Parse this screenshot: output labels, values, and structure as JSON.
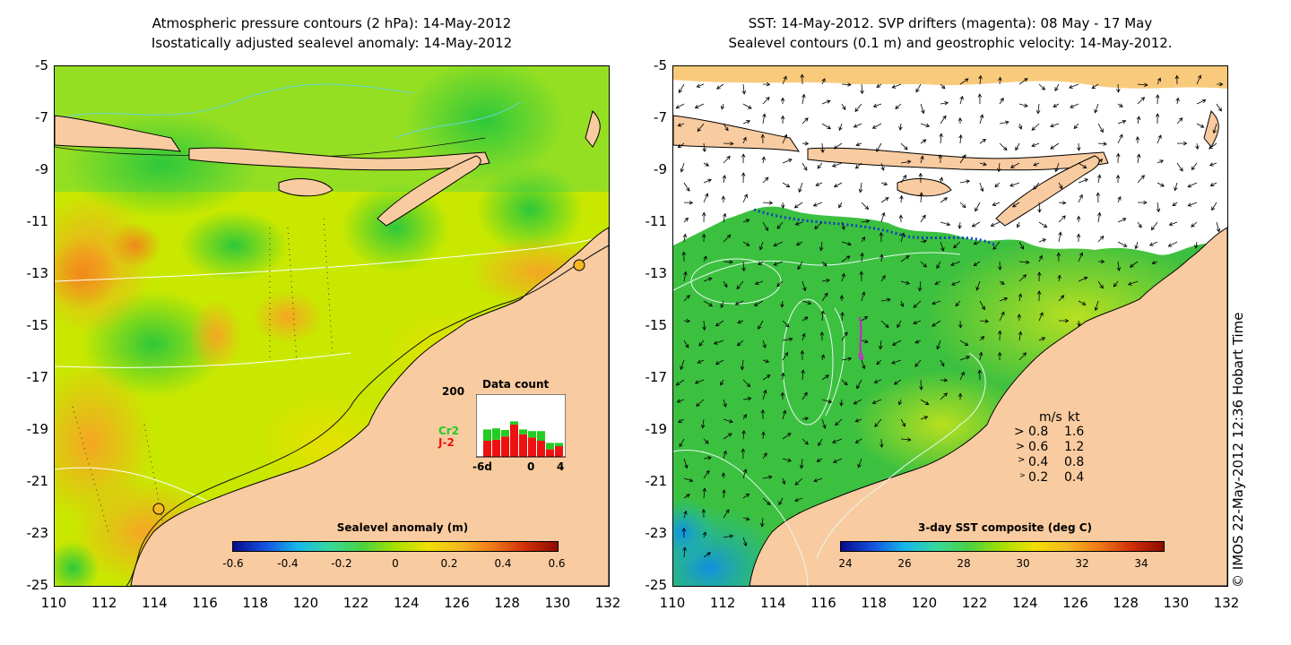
{
  "left_panel": {
    "title_line1": "Atmospheric pressure contours (2 hPa): 14-May-2012",
    "title_line2": "Isostatically adjusted sealevel anomaly: 14-May-2012",
    "colorbar_label": "Sealevel anomaly (m)",
    "colorbar_ticks": [
      "-0.6",
      "-0.4",
      "-0.2",
      "0",
      "0.2",
      "0.4",
      "0.6"
    ],
    "inset": {
      "title": "Data count",
      "y_max_label": "200",
      "x_labels": [
        "-6d",
        "0",
        "4"
      ],
      "legend": [
        {
          "label": "Cr2",
          "color": "#22cc22"
        },
        {
          "label": "J-2",
          "color": "#ee1111"
        }
      ]
    }
  },
  "right_panel": {
    "title_line1": "SST: 14-May-2012. SVP drifters (magenta): 08 May - 17 May",
    "title_line2": "Sealevel contours (0.1 m) and geostrophic velocity: 14-May-2012.",
    "colorbar_label": "3-day SST composite (deg C)",
    "colorbar_ticks": [
      "24",
      "26",
      "28",
      "30",
      "32",
      "34"
    ],
    "velocity_legend": {
      "header_ms": "m/s",
      "header_kt": "kt",
      "rows": [
        {
          "ms": "0.8",
          "kt": "1.6"
        },
        {
          "ms": "0.6",
          "kt": "1.2"
        },
        {
          "ms": "0.4",
          "kt": "0.8"
        },
        {
          "ms": "0.2",
          "kt": "0.4"
        }
      ]
    }
  },
  "axes": {
    "y_ticks": [
      "-5",
      "-7",
      "-9",
      "-11",
      "-13",
      "-15",
      "-17",
      "-19",
      "-21",
      "-23",
      "-25"
    ],
    "x_ticks": [
      "110",
      "112",
      "114",
      "116",
      "118",
      "120",
      "122",
      "124",
      "126",
      "128",
      "130",
      "132"
    ]
  },
  "credit": "© IMOS 22-May-2012 12:36 Hobart Time",
  "colors": {
    "land": "#f9cba0",
    "sla_background": "#c8e800",
    "sst_background": "#3cc040",
    "cloud": "#ffffff"
  }
}
